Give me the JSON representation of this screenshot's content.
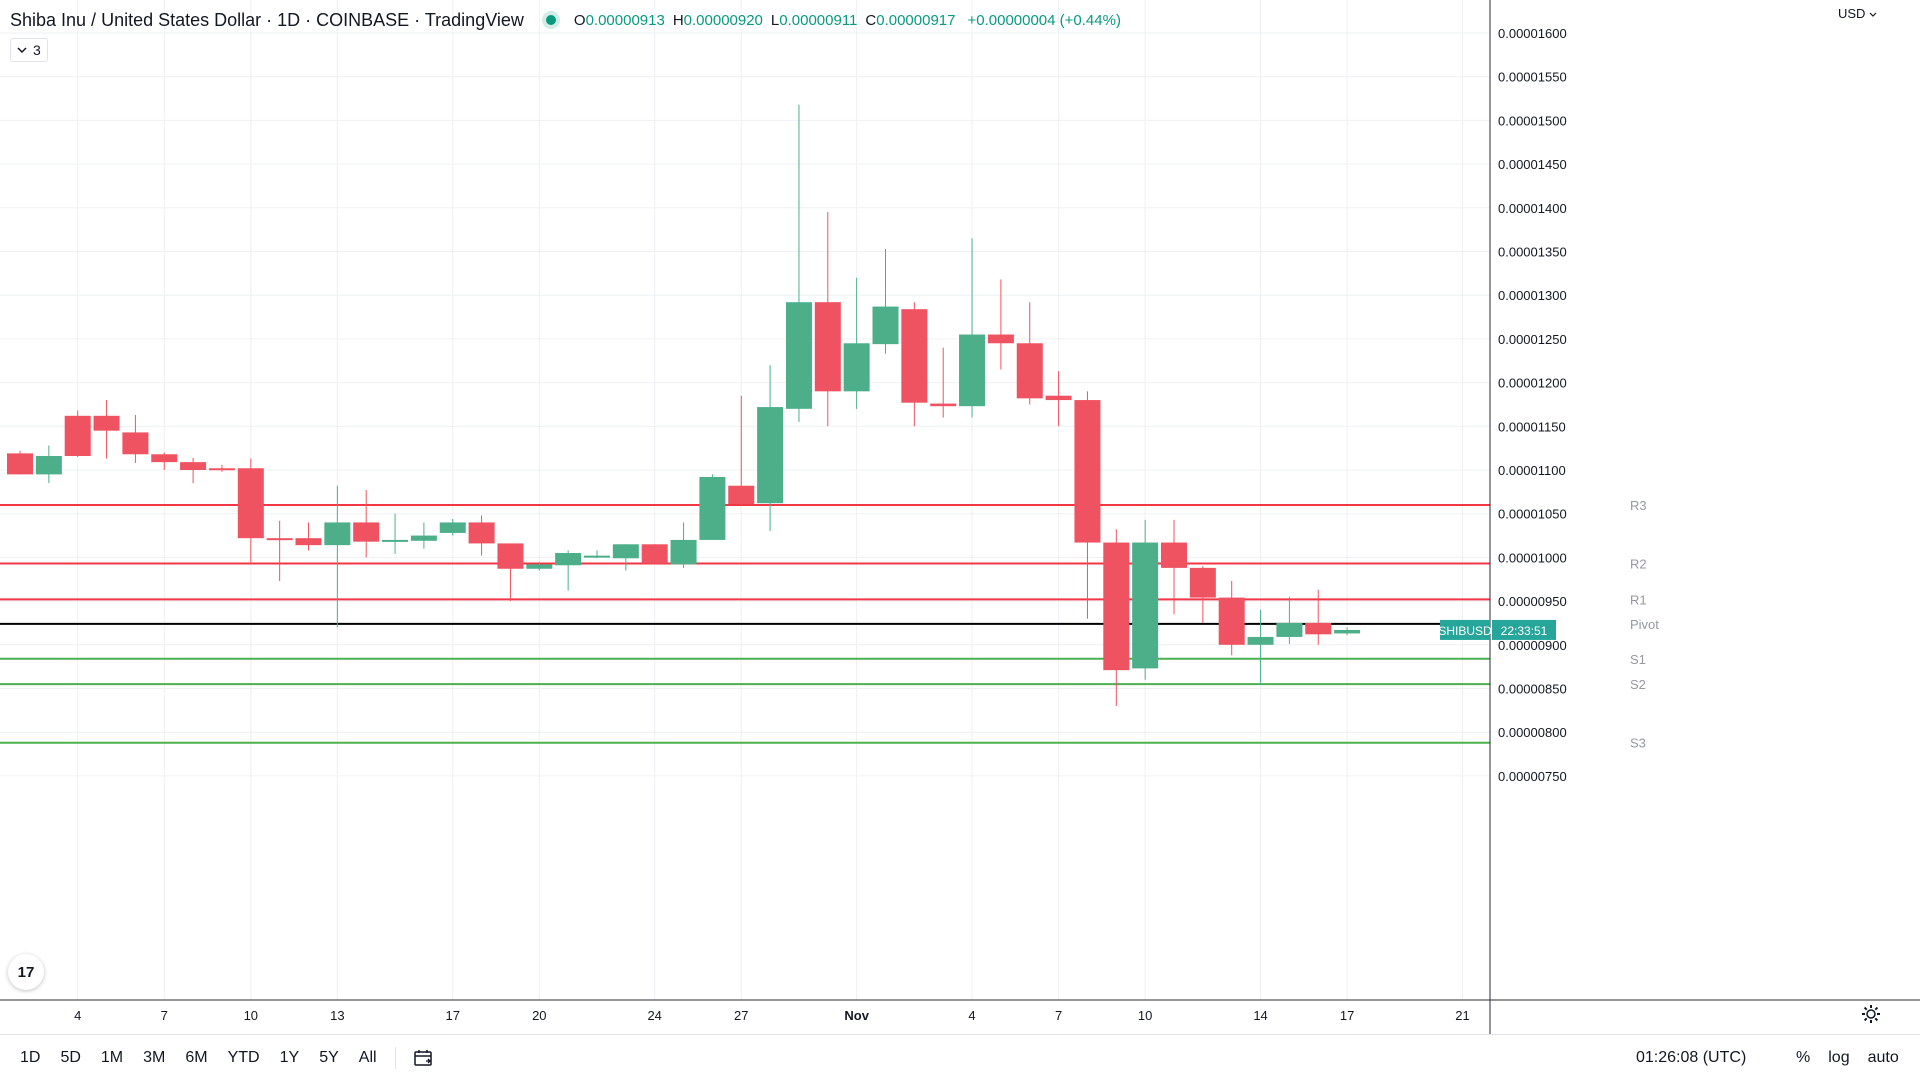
{
  "header": {
    "title": "Shiba Inu / United States Dollar · 1D · COINBASE · TradingView",
    "ohlc": [
      {
        "key": "O",
        "value": "0.00000913"
      },
      {
        "key": "H",
        "value": "0.00000920"
      },
      {
        "key": "L",
        "value": "0.00000911"
      },
      {
        "key": "C",
        "value": "0.00000917"
      }
    ],
    "change": "+0.00000004 (+0.44%)",
    "indicator_count": "3"
  },
  "currency": "USD",
  "logo_text": "17",
  "colors": {
    "up": "#4caf8a",
    "down": "#ef5260",
    "pivot_resistance": "#f23645",
    "pivot_support": "#4caf50",
    "pivot_center": "#000000",
    "grid": "#eef0f4",
    "price_tag": "#26a69a"
  },
  "bottom_bar": {
    "ranges": [
      "1D",
      "5D",
      "1M",
      "3M",
      "6M",
      "YTD",
      "1Y",
      "5Y",
      "All"
    ],
    "clock": "01:26:08 (UTC)",
    "right": [
      "%",
      "log",
      "auto"
    ]
  },
  "chart_data": {
    "type": "candlestick",
    "title": "Shiba Inu / United States Dollar · 1D · COINBASE",
    "ylim": [
      7.1e-06,
      1.61e-05
    ],
    "y_ticks": [
      "0.00001600",
      "0.00001550",
      "0.00001500",
      "0.00001450",
      "0.00001400",
      "0.00001350",
      "0.00001300",
      "0.00001250",
      "0.00001200",
      "0.00001150",
      "0.00001100",
      "0.00001050",
      "0.00001000",
      "0.00000950",
      "0.00000900",
      "0.00000850",
      "0.00000800",
      "0.00000750"
    ],
    "x_ticks": [
      "4",
      "7",
      "10",
      "13",
      "17",
      "20",
      "24",
      "27",
      "Nov",
      "4",
      "7",
      "10",
      "14",
      "17",
      "21"
    ],
    "candles": [
      {
        "o": 1.119e-05,
        "h": 1.122e-05,
        "l": 1.095e-05,
        "c": 1.095e-05
      },
      {
        "o": 1.095e-05,
        "h": 1.128e-05,
        "l": 1.085e-05,
        "c": 1.116e-05
      },
      {
        "o": 1.162e-05,
        "h": 1.168e-05,
        "l": 1.115e-05,
        "c": 1.116e-05
      },
      {
        "o": 1.162e-05,
        "h": 1.18e-05,
        "l": 1.113e-05,
        "c": 1.145e-05
      },
      {
        "o": 1.143e-05,
        "h": 1.163e-05,
        "l": 1.108e-05,
        "c": 1.118e-05
      },
      {
        "o": 1.118e-05,
        "h": 1.12e-05,
        "l": 1.1e-05,
        "c": 1.109e-05
      },
      {
        "o": 1.109e-05,
        "h": 1.114e-05,
        "l": 1.085e-05,
        "c": 1.1e-05
      },
      {
        "o": 1.102e-05,
        "h": 1.106e-05,
        "l": 1.098e-05,
        "c": 1.1e-05
      },
      {
        "o": 1.102e-05,
        "h": 1.113e-05,
        "l": 9.93e-06,
        "c": 1.022e-05
      },
      {
        "o": 1.022e-05,
        "h": 1.042e-05,
        "l": 9.73e-06,
        "c": 1.02e-05
      },
      {
        "o": 1.022e-05,
        "h": 1.04e-05,
        "l": 1.008e-05,
        "c": 1.014e-05
      },
      {
        "o": 1.014e-05,
        "h": 1.082e-05,
        "l": 9.2e-06,
        "c": 1.04e-05
      },
      {
        "o": 1.04e-05,
        "h": 1.077e-05,
        "l": 1e-05,
        "c": 1.018e-05
      },
      {
        "o": 1.018e-05,
        "h": 1.05e-05,
        "l": 1.004e-05,
        "c": 1.02e-05
      },
      {
        "o": 1.019e-05,
        "h": 1.04e-05,
        "l": 1.01e-05,
        "c": 1.025e-05
      },
      {
        "o": 1.028e-05,
        "h": 1.044e-05,
        "l": 1.025e-05,
        "c": 1.04e-05
      },
      {
        "o": 1.04e-05,
        "h": 1.048e-05,
        "l": 1.002e-05,
        "c": 1.016e-05
      },
      {
        "o": 1.016e-05,
        "h": 1.016e-05,
        "l": 9.5e-06,
        "c": 9.87e-06
      },
      {
        "o": 9.87e-06,
        "h": 9.95e-06,
        "l": 9.85e-06,
        "c": 9.92e-06
      },
      {
        "o": 9.91e-06,
        "h": 1.008e-05,
        "l": 9.62e-06,
        "c": 1.005e-05
      },
      {
        "o": 1.001e-05,
        "h": 1.008e-05,
        "l": 9.99e-06,
        "c": 1.002e-05
      },
      {
        "o": 9.99e-06,
        "h": 1.015e-05,
        "l": 9.85e-06,
        "c": 1.015e-05
      },
      {
        "o": 1.015e-05,
        "h": 1.015e-05,
        "l": 9.93e-06,
        "c": 9.93e-06
      },
      {
        "o": 9.92e-06,
        "h": 1.04e-05,
        "l": 9.88e-06,
        "c": 1.02e-05
      },
      {
        "o": 1.02e-05,
        "h": 1.095e-05,
        "l": 1.02e-05,
        "c": 1.092e-05
      },
      {
        "o": 1.082e-05,
        "h": 1.185e-05,
        "l": 1.06e-05,
        "c": 1.061e-05
      },
      {
        "o": 1.062e-05,
        "h": 1.22e-05,
        "l": 1.03e-05,
        "c": 1.172e-05
      },
      {
        "o": 1.17e-05,
        "h": 1.518e-05,
        "l": 1.155e-05,
        "c": 1.292e-05
      },
      {
        "o": 1.292e-05,
        "h": 1.395e-05,
        "l": 1.15e-05,
        "c": 1.19e-05
      },
      {
        "o": 1.19e-05,
        "h": 1.32e-05,
        "l": 1.17e-05,
        "c": 1.245e-05
      },
      {
        "o": 1.244e-05,
        "h": 1.353e-05,
        "l": 1.233e-05,
        "c": 1.287e-05
      },
      {
        "o": 1.284e-05,
        "h": 1.292e-05,
        "l": 1.15e-05,
        "c": 1.177e-05
      },
      {
        "o": 1.176e-05,
        "h": 1.24e-05,
        "l": 1.16e-05,
        "c": 1.173e-05
      },
      {
        "o": 1.173e-05,
        "h": 1.365e-05,
        "l": 1.16e-05,
        "c": 1.255e-05
      },
      {
        "o": 1.255e-05,
        "h": 1.318e-05,
        "l": 1.215e-05,
        "c": 1.245e-05
      },
      {
        "o": 1.245e-05,
        "h": 1.292e-05,
        "l": 1.175e-05,
        "c": 1.182e-05
      },
      {
        "o": 1.185e-05,
        "h": 1.213e-05,
        "l": 1.15e-05,
        "c": 1.18e-05
      },
      {
        "o": 1.18e-05,
        "h": 1.19e-05,
        "l": 9.3e-06,
        "c": 1.017e-05
      },
      {
        "o": 1.017e-05,
        "h": 1.032e-05,
        "l": 8.3e-06,
        "c": 8.71e-06
      },
      {
        "o": 8.73e-06,
        "h": 1.043e-05,
        "l": 8.6e-06,
        "c": 1.017e-05
      },
      {
        "o": 1.017e-05,
        "h": 1.043e-05,
        "l": 9.35e-06,
        "c": 9.88e-06
      },
      {
        "o": 9.88e-06,
        "h": 9.9e-06,
        "l": 9.25e-06,
        "c": 9.54e-06
      },
      {
        "o": 9.54e-06,
        "h": 9.73e-06,
        "l": 8.88e-06,
        "c": 9e-06
      },
      {
        "o": 9e-06,
        "h": 9.4e-06,
        "l": 8.54e-06,
        "c": 9.09e-06
      },
      {
        "o": 9.09e-06,
        "h": 9.55e-06,
        "l": 9.01e-06,
        "c": 9.25e-06
      },
      {
        "o": 9.25e-06,
        "h": 9.63e-06,
        "l": 9e-06,
        "c": 9.12e-06
      },
      {
        "o": 9.13e-06,
        "h": 9.2e-06,
        "l": 9.11e-06,
        "c": 9.17e-06
      }
    ],
    "pivot_levels": [
      {
        "name": "R3",
        "value": 1.06e-05,
        "kind": "resistance"
      },
      {
        "name": "R2",
        "value": 9.93e-06,
        "kind": "resistance"
      },
      {
        "name": "R1",
        "value": 9.52e-06,
        "kind": "resistance"
      },
      {
        "name": "Pivot",
        "value": 9.24e-06,
        "kind": "pivot"
      },
      {
        "name": "S1",
        "value": 8.84e-06,
        "kind": "support"
      },
      {
        "name": "S2",
        "value": 8.55e-06,
        "kind": "support"
      },
      {
        "name": "S3",
        "value": 7.88e-06,
        "kind": "support"
      }
    ],
    "price_tag": {
      "symbol": "SHIBUSD",
      "countdown": "22:33:51",
      "value": 9.17e-06
    }
  }
}
